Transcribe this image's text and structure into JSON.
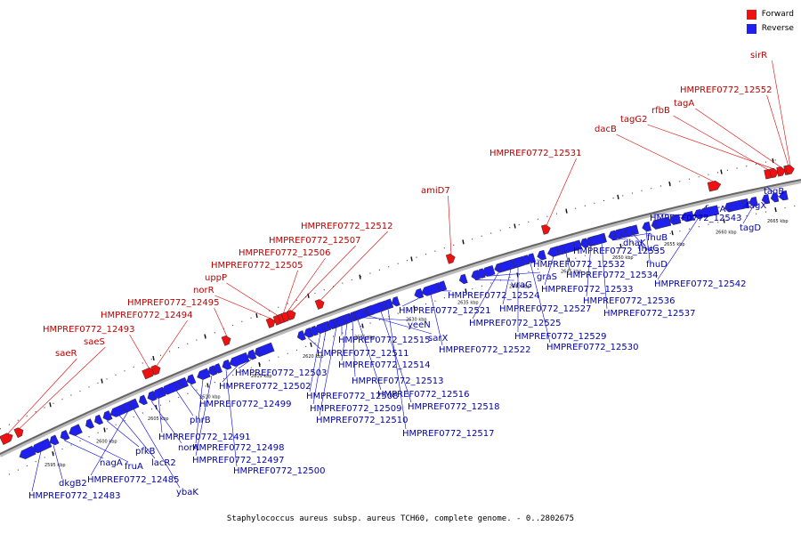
{
  "caption": "Staphylococcus aureus subsp. aureus TCH60, complete genome. - 0..2802675",
  "legend": {
    "forward": "Forward",
    "reverse": "Reverse"
  },
  "colors": {
    "forward": "#ee1111",
    "reverse": "#1f1fee",
    "backbone": "#888888",
    "leader_forward": "#dd0000",
    "leader_reverse": "#0000dd"
  },
  "ticks": [
    "2595 kbp",
    "2600 kbp",
    "2605 kbp",
    "2610 kbp",
    "2615 kbp",
    "2620 kbp",
    "2625 kbp",
    "2630 kbp",
    "2635 kbp",
    "2640 kbp",
    "2645 kbp",
    "2650 kbp",
    "2655 kbp",
    "2660 kbp",
    "2665 kbp"
  ],
  "forward_genes": [
    "saeR",
    "saeS",
    "HMPREF0772_12493",
    "HMPREF0772_12494",
    "HMPREF0772_12495",
    "norR",
    "uppP",
    "HMPREF0772_12505",
    "HMPREF0772_12506",
    "HMPREF0772_12507",
    "HMPREF0772_12512",
    "amiD7",
    "HMPREF0772_12531",
    "dacB",
    "rfbB",
    "tagG2",
    "tagA",
    "HMPREF0772_12552",
    "sirR"
  ],
  "reverse_genes": [
    "HMPREF0772_12483",
    "dkgB2",
    "nagA",
    "fruA",
    "pfkB",
    "lacR2",
    "HMPREF0772_12485",
    "ybaK",
    "norA",
    "HMPREF0772_12491",
    "phrB",
    "HMPREF0772_12499",
    "HMPREF0772_12498",
    "HMPREF0772_12497",
    "HMPREF0772_12500",
    "HMPREF0772_12502",
    "HMPREF0772_12503",
    "HMPREF0772_12511",
    "HMPREF0772_12508",
    "HMPREF0772_12509",
    "HMPREF0772_12510",
    "HMPREF0772_12515",
    "HMPREF0772_12514",
    "HMPREF0772_12513",
    "HMPREF0772_12516",
    "yeeN",
    "sarX",
    "HMPREF0772_12518",
    "HMPREF0772_12517",
    "HMPREF0772_12521",
    "HMPREF0772_12522",
    "HMPREF0772_12524",
    "vraG",
    "graS",
    "HMPREF0772_12525",
    "HMPREF0772_12527",
    "HMPREF0772_12529",
    "HMPREF0772_12530",
    "HMPREF0772_12532",
    "HMPREF0772_12533",
    "HMPREF0772_12534",
    "HMPREF0772_12535",
    "HMPREF0772_12536",
    "HMPREF0772_12537",
    "dhaK",
    "fhuB",
    "fhuC",
    "fhuD",
    "lmrA",
    "HMPREF0772_12542",
    "HMPREF0772_12543",
    "tagX",
    "tagD",
    "tagB"
  ]
}
